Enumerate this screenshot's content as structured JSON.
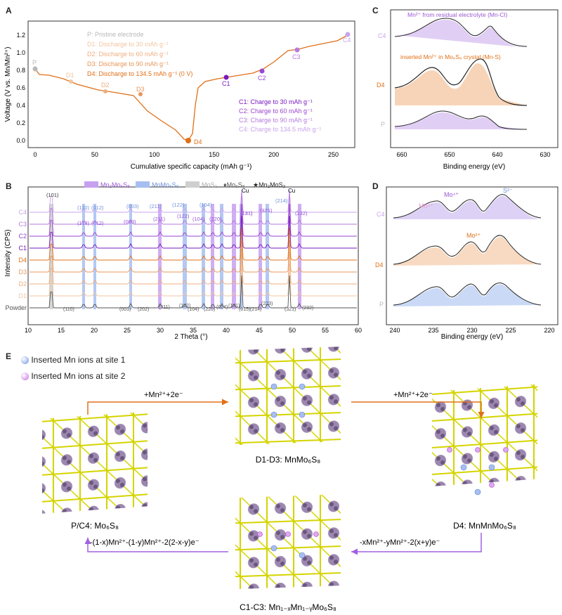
{
  "panels": {
    "A": {
      "letter": "A",
      "ylabel": "Voltage (V vs. Mn/Mn²⁺)",
      "xlabel": "Cumulative specific capacity (mAh g⁻¹)",
      "xticks": [
        "0",
        "50",
        "100",
        "150",
        "200",
        "250"
      ],
      "yticks": [
        "0.0",
        "0.2",
        "0.4",
        "0.6",
        "0.8",
        "1.0",
        "1.2"
      ],
      "legend_left": [
        {
          "text": "P: Pristine electrode",
          "color": "#b8b8b8"
        },
        {
          "text": "D1: Discharge to 30 mAh g⁻¹",
          "color": "#f2c6a0"
        },
        {
          "text": "D2: Discharge to 60 mAh g⁻¹",
          "color": "#eeae7e"
        },
        {
          "text": "D3: Discharge to 90 mAh g⁻¹",
          "color": "#e89656"
        },
        {
          "text": "D4: Discharge to 134.5 mAh g⁻¹ (0 V)",
          "color": "#e07018"
        }
      ],
      "legend_right": [
        {
          "text": "C1: Charge to 30 mAh g⁻¹",
          "color": "#7a18c0"
        },
        {
          "text": "C2: Charge to 60 mAh g⁻¹",
          "color": "#9a46d0"
        },
        {
          "text": "C3: Charge to 90 mAh g⁻¹",
          "color": "#b47ade"
        },
        {
          "text": "C4: Charge to 134.5 mAh g⁻¹",
          "color": "#c9a4ec"
        }
      ],
      "point_labels": [
        "P",
        "D1",
        "D2",
        "D3",
        "D4",
        "C1",
        "C2",
        "C3",
        "C4"
      ]
    },
    "B": {
      "letter": "B",
      "ylabel": "Intensity (CPS)",
      "xlabel": "2 Theta (°)",
      "xticks": [
        "10",
        "15",
        "20",
        "25",
        "30",
        "35",
        "40",
        "45",
        "50",
        "55",
        "60"
      ],
      "legend": [
        {
          "text": "Mn₂Mo₆S₈",
          "color": "#c7a0f0"
        },
        {
          "text": "MnMo₆S₈",
          "color": "#a7bff0"
        },
        {
          "text": "MoS₂",
          "color": "#cfcfcf"
        },
        {
          "text": "♦Mo₆S₈",
          "color": "#555555"
        },
        {
          "text": "★Mn₂MoS₂",
          "color": "#222222"
        }
      ],
      "traces": [
        "C4",
        "C3",
        "C2",
        "C1",
        "D4",
        "D3",
        "D2",
        "D1",
        "Powder"
      ],
      "peak_top": [
        "(101)",
        "(110)",
        "(012)",
        "(003)",
        "(211)",
        "(122)",
        "(104)",
        "(131)",
        "(214)",
        "(321)",
        "(232)"
      ],
      "peak_mid": [
        "(113)",
        "(012)",
        "(003)",
        "(211)",
        "(122)",
        "(104)",
        "(220)",
        "(131)"
      ],
      "peak_bottom": [
        "(110)",
        "(003)",
        "(202)",
        "(211)",
        "(122)",
        "(104)",
        "(220)",
        "(024)",
        "(131)",
        "(015)",
        "(214)",
        "(223)",
        "(321)",
        "(232)"
      ],
      "cu": "Cu"
    },
    "C": {
      "letter": "C",
      "xlabel": "Binding energy (eV)",
      "xticks": [
        "660",
        "650",
        "640",
        "630"
      ],
      "traces": [
        "C4",
        "D4",
        "P"
      ],
      "ann1": "Mn²⁺ from residual electrolyte (Mn-Cl)",
      "ann2": "inserted Mn²⁺ in Mo₆S₈ crystal (Mn-S)"
    },
    "D": {
      "letter": "D",
      "xlabel": "Binding energy (eV)",
      "xticks": [
        "240",
        "235",
        "230",
        "225",
        "220"
      ],
      "traces": [
        "C4",
        "D4",
        "P"
      ],
      "ann_mo6": "Mo⁶⁺",
      "ann_mo4": "Mo⁴⁺",
      "ann_s2": "S²⁻",
      "ann_mo2": "Mo²⁺"
    },
    "E": {
      "letter": "E",
      "legend1": "Inserted Mn ions at site 1",
      "legend2": "Inserted Mn ions at site 2",
      "arrow_top_left": "+Mn²⁺+2e⁻",
      "arrow_top_right": "+Mn²⁺+2e⁻",
      "arrow_bottom_right": "-xMn²⁺-yMn²⁺-2(x+y)e⁻",
      "arrow_bottom_left": "-(1-x)Mn²⁺-(1-y)Mn²⁺-2(2-x-y)e⁻",
      "label_left": "P/C4: Mo₆S₈",
      "label_top": "D1-D3: MnMo₆S₈",
      "label_right": "D4: MnMnMo₆S₈",
      "label_bottom": "C1-C3: Mn₁₋ₓMn₁₋ᵧMo₆S₈"
    }
  },
  "colors": {
    "orange": "#e07018",
    "purple": "#8a2be2",
    "lightpurple": "#c9a4ec",
    "blue": "#a7bff0",
    "grey": "#bdbdbd"
  }
}
